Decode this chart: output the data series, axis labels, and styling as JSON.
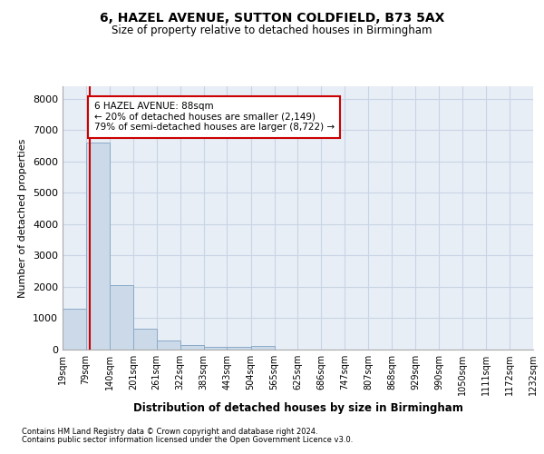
{
  "title": "6, HAZEL AVENUE, SUTTON COLDFIELD, B73 5AX",
  "subtitle": "Size of property relative to detached houses in Birmingham",
  "xlabel": "Distribution of detached houses by size in Birmingham",
  "ylabel": "Number of detached properties",
  "footnote1": "Contains HM Land Registry data © Crown copyright and database right 2024.",
  "footnote2": "Contains public sector information licensed under the Open Government Licence v3.0.",
  "annotation_title": "6 HAZEL AVENUE: 88sqm",
  "annotation_line1": "← 20% of detached houses are smaller (2,149)",
  "annotation_line2": "79% of semi-detached houses are larger (8,722) →",
  "bar_edges": [
    19,
    79,
    140,
    201,
    261,
    322,
    383,
    443,
    504,
    565,
    625,
    686,
    747,
    807,
    868,
    929,
    990,
    1050,
    1111,
    1172,
    1232
  ],
  "bar_heights": [
    1300,
    6600,
    2070,
    660,
    290,
    150,
    100,
    80,
    130,
    0,
    0,
    0,
    0,
    0,
    0,
    0,
    0,
    0,
    0,
    0
  ],
  "bar_color": "#ccd9e8",
  "bar_edge_color": "#8aaac8",
  "property_size": 88,
  "vline_color": "#cc0000",
  "grid_color": "#c8d4e4",
  "background_color": "#e8eef6",
  "ylim": [
    0,
    8400
  ],
  "yticks": [
    0,
    1000,
    2000,
    3000,
    4000,
    5000,
    6000,
    7000,
    8000
  ]
}
